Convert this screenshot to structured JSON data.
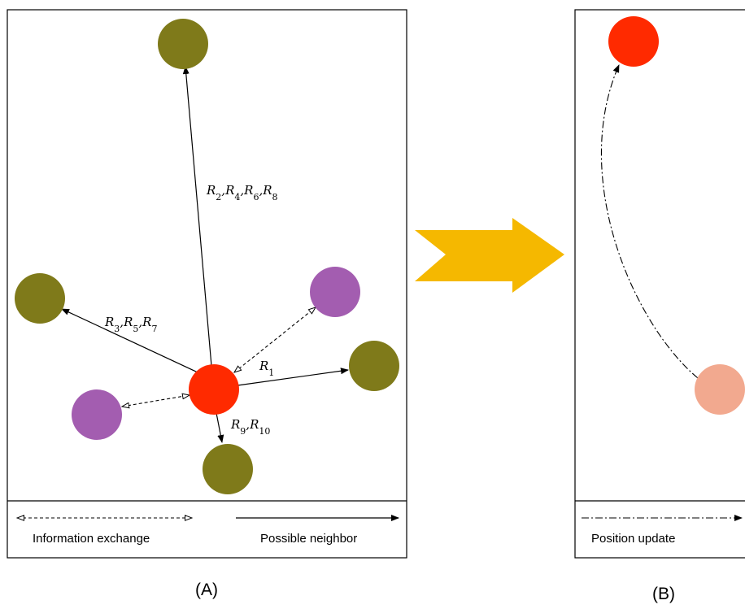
{
  "colors": {
    "olive": "#7f7a1a",
    "red": "#ff2a00",
    "purple": "#a35db0",
    "salmon": "#f2a98f",
    "arrow_yellow": "#f5b800",
    "line": "#000000"
  },
  "panel_a": {
    "caption": "(A)",
    "edge_labels": {
      "up": "R2,R4,R6,R8",
      "left": "R3,R5,R7",
      "right": "R1",
      "down": "R9,R10"
    },
    "legend": {
      "info_exchange": "Information exchange",
      "possible_neighbor": "Possible neighbor"
    }
  },
  "panel_b": {
    "caption": "(B)",
    "legend": {
      "position_update": "Position update"
    }
  }
}
